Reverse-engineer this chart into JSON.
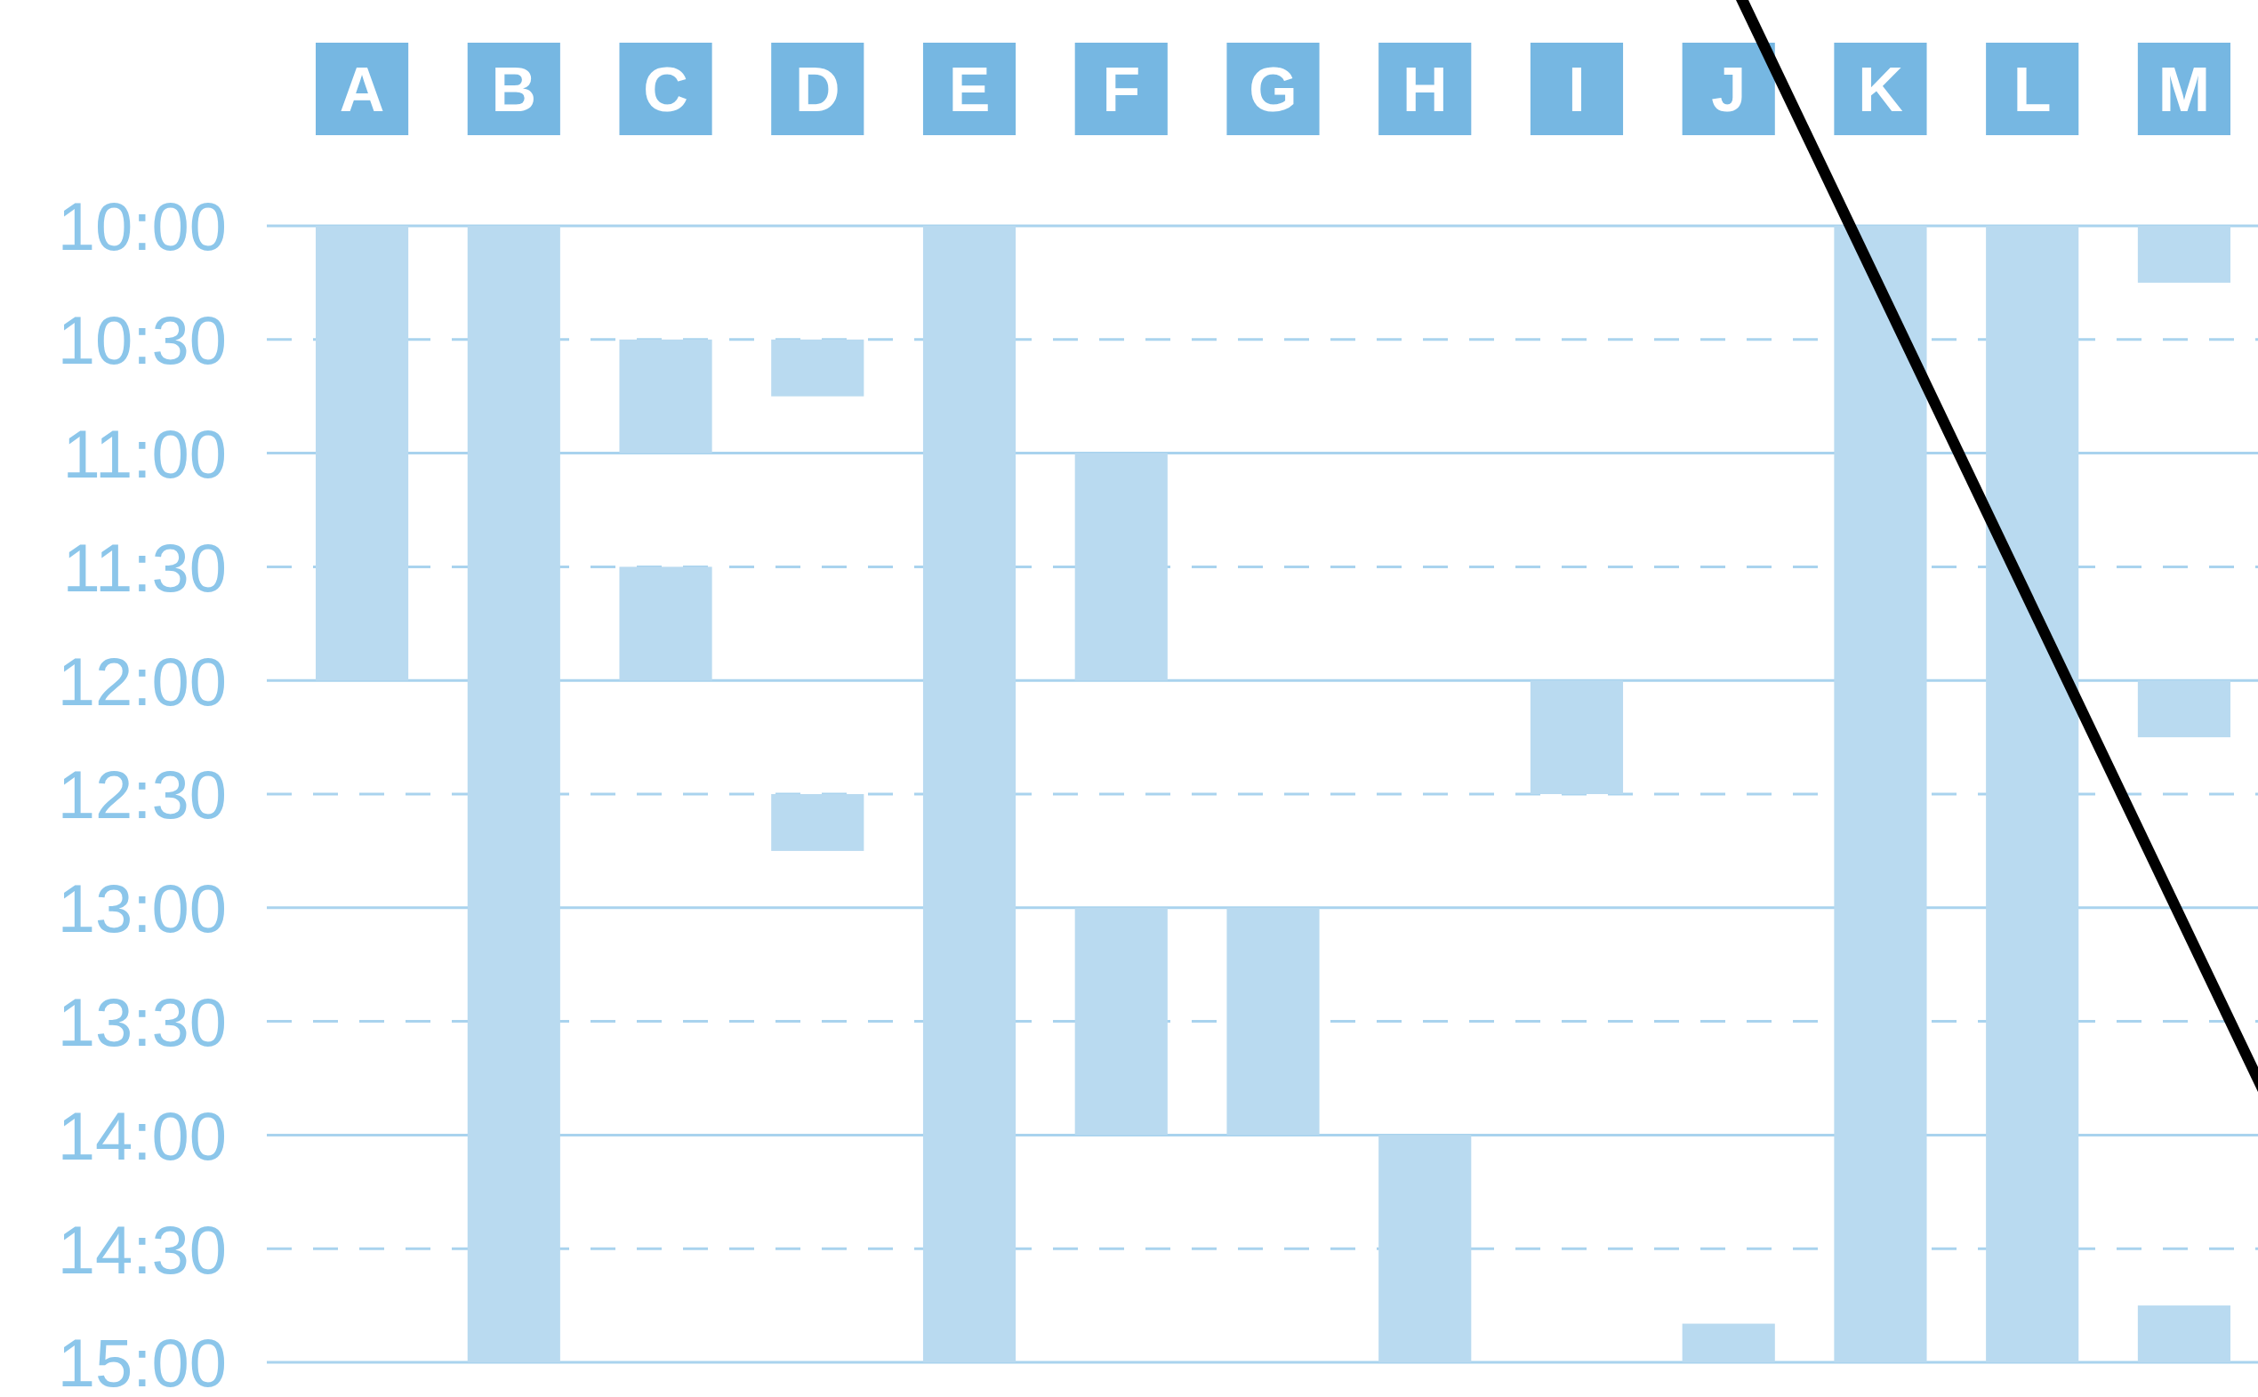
{
  "chart_data": {
    "type": "bar",
    "categories": [
      "A",
      "B",
      "C",
      "D",
      "E",
      "F",
      "G",
      "H",
      "I",
      "J",
      "K",
      "L",
      "M"
    ],
    "ylim": [
      15,
      10
    ],
    "yticks": [
      {
        "value": 10,
        "label": "10:00"
      },
      {
        "value": 10.5,
        "label": "10:30"
      },
      {
        "value": 11,
        "label": "11:00"
      },
      {
        "value": 11.5,
        "label": "11:30"
      },
      {
        "value": 12,
        "label": "12:00"
      },
      {
        "value": 12.5,
        "label": "12:30"
      },
      {
        "value": 13,
        "label": "13:00"
      },
      {
        "value": 13.5,
        "label": "13:30"
      },
      {
        "value": 14,
        "label": "14:00"
      },
      {
        "value": 14.5,
        "label": "14:30"
      },
      {
        "value": 15,
        "label": "15:00"
      }
    ],
    "grid": "y",
    "series": [
      {
        "color": "#b9daf0",
        "base": [
          10,
          10,
          10.5,
          10.5,
          10,
          11,
          13,
          14,
          12,
          14.83,
          10,
          10,
          10
        ],
        "values": [
          2,
          5,
          0.5,
          0.25,
          5,
          1,
          1,
          1,
          0.5,
          0.17,
          5,
          5,
          0.25
        ]
      },
      {
        "color": "#b9daf0",
        "base": [
          null,
          null,
          11.5,
          12.5,
          null,
          13,
          null,
          null,
          null,
          null,
          null,
          null,
          12
        ],
        "values": [
          null,
          null,
          0.5,
          0.25,
          null,
          1,
          null,
          null,
          null,
          null,
          null,
          null,
          0.25
        ]
      },
      {
        "color": "#b9daf0",
        "base": [
          null,
          null,
          null,
          null,
          null,
          null,
          null,
          null,
          null,
          null,
          null,
          null,
          14.75
        ],
        "values": [
          null,
          null,
          null,
          null,
          null,
          null,
          null,
          null,
          null,
          null,
          null,
          null,
          0.25
        ]
      }
    ]
  }
}
